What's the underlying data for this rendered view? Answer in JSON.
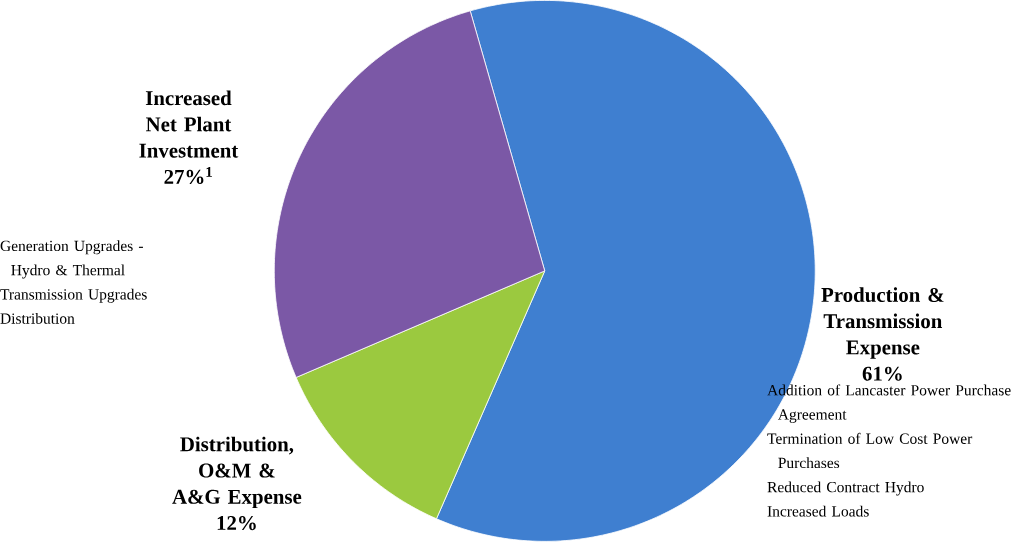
{
  "chart_data": {
    "type": "pie",
    "categories": [
      "Production & Transmission Expense",
      "Distribution, O&M & A&G Expense",
      "Increased Net Plant Investment"
    ],
    "values": [
      61,
      12,
      27
    ],
    "value_labels": [
      "61%",
      "12%",
      "27%$^{1}$"
    ],
    "colors": [
      "#3f7fd0",
      "#9bc93f",
      "#7b58a6"
    ],
    "annotations": [
      "Generation Upgrades - Hydro & Thermal",
      "Transmission Upgrades",
      "Distribution",
      "Addition of Lancaster Power Purchase Agreement",
      "Termination of Low Cost Power Purchases",
      "Reduced Contract Hydro",
      "Increased Loads"
    ]
  }
}
